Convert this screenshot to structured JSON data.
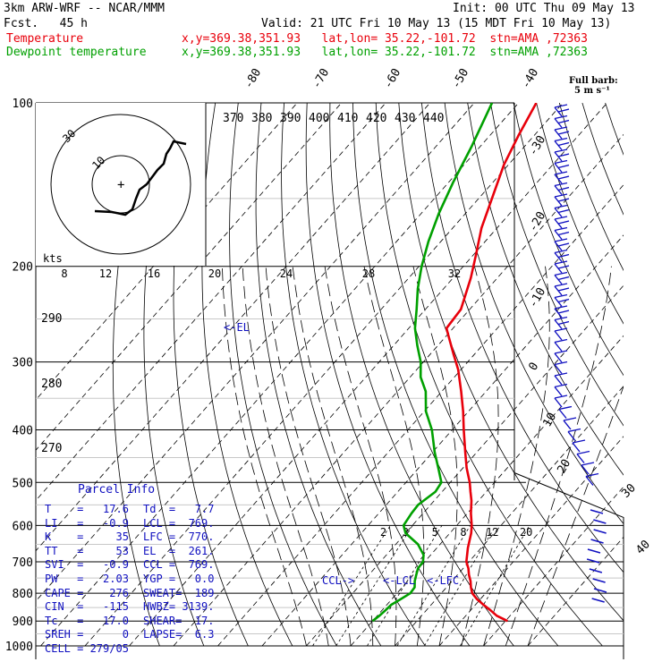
{
  "header": {
    "model": "3km ARW-WRF -- NCAR/MMM",
    "fcst": "Fcst.   45 h",
    "init": "Init: 00 UTC Thu 09 May 13",
    "valid": "Valid: 21 UTC Fri 10 May 13 (15 MDT Fri 10 May 13)",
    "temp_label": "Temperature",
    "temp_loc": "x,y=369.38,351.93   lat,lon= 35.22,-101.72  stn=AMA ,72363",
    "dew_label": "Dewpoint temperature",
    "dew_loc": "x,y=369.38,351.93   lat,lon= 35.22,-101.72  stn=AMA ,72363",
    "temp_color": "#e8000b",
    "dew_color": "#00a000",
    "barb_legend_1": "Full barb:",
    "barb_legend_2": "5 m s⁻¹"
  },
  "chart_data": {
    "type": "line",
    "title": "",
    "xlabel": "",
    "ylabel": "",
    "pressure_levels": [
      {
        "p": 100,
        "label": "100"
      },
      {
        "p": 200,
        "label": "200"
      },
      {
        "p": 300,
        "label": "300"
      },
      {
        "p": 400,
        "label": "400"
      },
      {
        "p": 500,
        "label": "500"
      },
      {
        "p": 600,
        "label": "600"
      },
      {
        "p": 700,
        "label": "700"
      },
      {
        "p": 800,
        "label": "800"
      },
      {
        "p": 900,
        "label": "900"
      },
      {
        "p": 1000,
        "label": "1000"
      }
    ],
    "temp_tick_labels": [
      "-80",
      "-70",
      "-60",
      "-50",
      "-40",
      "-30",
      "-20",
      "-10",
      "0",
      "10",
      "20",
      "30",
      "40"
    ],
    "theta_e_labels": [
      "370",
      "380",
      "390",
      "400",
      "410",
      "420",
      "430",
      "440"
    ],
    "theta_labels": [
      "290",
      "280",
      "270"
    ],
    "mixing_ratio_labels": [
      "2",
      "3",
      "5",
      "8",
      "12",
      "20"
    ],
    "hodo_speed_labels": [
      "8",
      "12",
      "16",
      "20",
      "24",
      "28",
      "32"
    ],
    "hodo_unit": "kts",
    "hodo_ring_labels": [
      "30",
      "10"
    ],
    "series": [
      {
        "name": "Temperature",
        "points": [
          [
            900,
            30.5
          ],
          [
            880,
            27
          ],
          [
            860,
            24.5
          ],
          [
            840,
            21.8
          ],
          [
            820,
            19.2
          ],
          [
            800,
            17
          ],
          [
            780,
            15.5
          ],
          [
            760,
            14.2
          ],
          [
            740,
            12.6
          ],
          [
            720,
            11.2
          ],
          [
            700,
            9.4
          ],
          [
            660,
            7
          ],
          [
            620,
            4.8
          ],
          [
            600,
            3.4
          ],
          [
            570,
            0.8
          ],
          [
            540,
            -1.6
          ],
          [
            520,
            -3.6
          ],
          [
            500,
            -5.6
          ],
          [
            470,
            -9.2
          ],
          [
            440,
            -12.6
          ],
          [
            400,
            -17.4
          ],
          [
            370,
            -21.2
          ],
          [
            340,
            -25.6
          ],
          [
            310,
            -30.6
          ],
          [
            290,
            -34.8
          ],
          [
            270,
            -39.2
          ],
          [
            260,
            -41.5
          ],
          [
            240,
            -42
          ],
          [
            210,
            -46
          ],
          [
            190,
            -49.5
          ],
          [
            170,
            -53.5
          ],
          [
            150,
            -57
          ],
          [
            130,
            -61
          ],
          [
            115,
            -63.5
          ],
          [
            100,
            -66
          ]
        ]
      },
      {
        "name": "Dewpoint temperature",
        "points": [
          [
            900,
            0
          ],
          [
            880,
            0.5
          ],
          [
            860,
            0.8
          ],
          [
            840,
            1
          ],
          [
            820,
            2
          ],
          [
            800,
            3
          ],
          [
            780,
            2.8
          ],
          [
            760,
            1.6
          ],
          [
            740,
            0.7
          ],
          [
            720,
            -0.2
          ],
          [
            700,
            -0.4
          ],
          [
            680,
            -1.6
          ],
          [
            650,
            -5
          ],
          [
            620,
            -10
          ],
          [
            600,
            -12
          ],
          [
            570,
            -12.6
          ],
          [
            550,
            -12.8
          ],
          [
            520,
            -11.5
          ],
          [
            500,
            -12
          ],
          [
            470,
            -15.6
          ],
          [
            440,
            -19.5
          ],
          [
            400,
            -24.6
          ],
          [
            370,
            -29.6
          ],
          [
            340,
            -33.6
          ],
          [
            320,
            -37.6
          ],
          [
            300,
            -40.6
          ],
          [
            280,
            -44.6
          ],
          [
            260,
            -48.6
          ],
          [
            240,
            -52
          ],
          [
            220,
            -55.8
          ],
          [
            200,
            -59.4
          ],
          [
            180,
            -62.8
          ],
          [
            160,
            -66
          ],
          [
            140,
            -69
          ],
          [
            120,
            -72
          ],
          [
            100,
            -76
          ]
        ]
      }
    ],
    "annotations": {
      "el": "<-EL",
      "ccl": "CCL->",
      "lcl": "<-LCL",
      "lfc": "<-LFC"
    }
  },
  "parcel": {
    "title": "Parcel Info",
    "rows": [
      {
        "a": "T    =   17.6",
        "b": "Td  =   7.7"
      },
      {
        "a": "LI   =   -0.9",
        "b": "LCL =  769."
      },
      {
        "a": "K    =     35",
        "b": "LFC =  770."
      },
      {
        "a": "TT   =     53",
        "b": "EL  =  261."
      },
      {
        "a": "SVI  =   -0.9",
        "b": "CCL =  769."
      },
      {
        "a": "PW   =   2.03",
        "b": "YGP =   0.0"
      },
      {
        "a": "CAPE =    276",
        "b": "SWEAT=  189"
      },
      {
        "a": "CIN  =   -115",
        "b": "HWBZ= 3139."
      },
      {
        "a": "Tc   =   17.0",
        "b": "SHEAR=  17."
      },
      {
        "a": "SREH =      0",
        "b": "LAPSE=  6.3"
      },
      {
        "a": "CELL = 279/05",
        "b": ""
      }
    ]
  }
}
